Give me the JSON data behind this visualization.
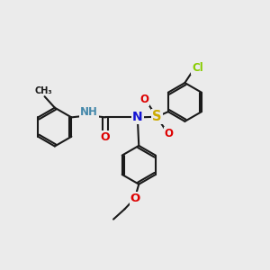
{
  "bg_color": "#ebebeb",
  "bond_color": "#1a1a1a",
  "bond_width": 1.5,
  "atom_colors": {
    "N": "#1414d4",
    "NH": "#4488aa",
    "O": "#dd0000",
    "S": "#ccaa00",
    "Cl": "#88cc00",
    "C": "#1a1a1a"
  },
  "font_size": 8.5,
  "fig_size": [
    3.0,
    3.0
  ],
  "dpi": 100
}
